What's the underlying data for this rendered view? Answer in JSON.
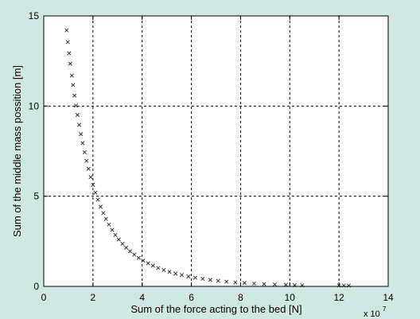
{
  "chart_data": {
    "type": "scatter",
    "title": "",
    "xlabel": "Sum of the force acting to the bed [N]",
    "ylabel": "Sum of the middle mass possition [m]",
    "x_multiplier_label": "x 10",
    "x_multiplier_exponent": "7",
    "xlim": [
      0,
      14
    ],
    "ylim": [
      0,
      15
    ],
    "xticks": [
      "0",
      "2",
      "4",
      "6",
      "8",
      "10",
      "12",
      "14"
    ],
    "yticks": [
      "0",
      "5",
      "10",
      "15"
    ],
    "grid": true,
    "grid_style": "dashed",
    "marker": "x",
    "colors": {
      "background": "#cfe9e2",
      "plot_area": "#ffffff",
      "marker": "#333333",
      "grid": "#000000"
    },
    "series": [
      {
        "x": [
          0.93,
          0.98,
          1.03,
          1.08,
          1.14,
          1.19,
          1.25,
          1.31,
          1.37,
          1.44,
          1.51,
          1.58,
          1.66,
          1.74,
          1.82,
          1.91,
          2.0,
          2.1,
          2.2,
          2.31,
          2.42,
          2.53,
          2.65,
          2.78,
          2.91,
          3.05,
          3.2,
          3.35,
          3.51,
          3.68,
          3.86,
          4.04,
          4.24,
          4.44,
          4.65,
          4.88,
          5.11,
          5.36,
          5.61,
          5.88,
          6.16,
          6.46,
          6.77,
          7.09,
          7.43,
          7.79,
          8.16,
          8.55,
          8.96,
          9.39,
          9.84,
          10.2,
          10.5,
          12.0,
          12.2,
          12.4
        ],
        "y": [
          14.2,
          13.55,
          12.93,
          12.35,
          11.69,
          11.17,
          10.58,
          10.03,
          9.51,
          8.96,
          8.44,
          7.95,
          7.44,
          6.96,
          6.52,
          6.06,
          5.63,
          5.2,
          4.81,
          4.42,
          4.07,
          3.74,
          3.43,
          3.13,
          2.85,
          2.6,
          2.36,
          2.15,
          1.95,
          1.76,
          1.58,
          1.43,
          1.28,
          1.15,
          1.02,
          0.91,
          0.81,
          0.71,
          0.63,
          0.55,
          0.48,
          0.42,
          0.36,
          0.31,
          0.26,
          0.22,
          0.19,
          0.16,
          0.13,
          0.11,
          0.09,
          0.07,
          0.06,
          0.05,
          0.05,
          0.05
        ]
      }
    ]
  }
}
